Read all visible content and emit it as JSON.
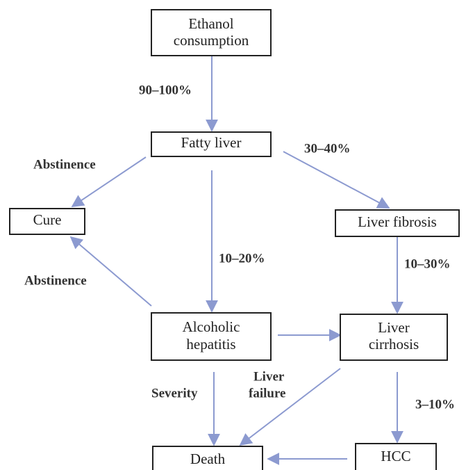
{
  "nodes": [
    {
      "lines": [
        "Ethanol",
        "consumption"
      ]
    },
    {
      "lines": [
        "Fatty liver"
      ]
    },
    {
      "lines": [
        "Cure"
      ]
    },
    {
      "lines": [
        "Liver fibrosis"
      ]
    },
    {
      "lines": [
        "Alcoholic",
        "hepatitis"
      ]
    },
    {
      "lines": [
        "Liver",
        "cirrhosis"
      ]
    },
    {
      "lines": [
        "Death"
      ]
    },
    {
      "lines": [
        "HCC"
      ]
    }
  ],
  "edge_labels": [
    {
      "lines": [
        "90–100%"
      ]
    },
    {
      "lines": [
        "30–40%"
      ]
    },
    {
      "lines": [
        "Abstinence"
      ]
    },
    {
      "lines": [
        "10–20%"
      ]
    },
    {
      "lines": [
        "10–30%"
      ]
    },
    {
      "lines": [
        "Abstinence"
      ]
    },
    {
      "lines": [
        "Severity"
      ]
    },
    {
      "lines": [
        "Liver",
        "failure"
      ]
    },
    {
      "lines": [
        "3–10%"
      ]
    }
  ]
}
